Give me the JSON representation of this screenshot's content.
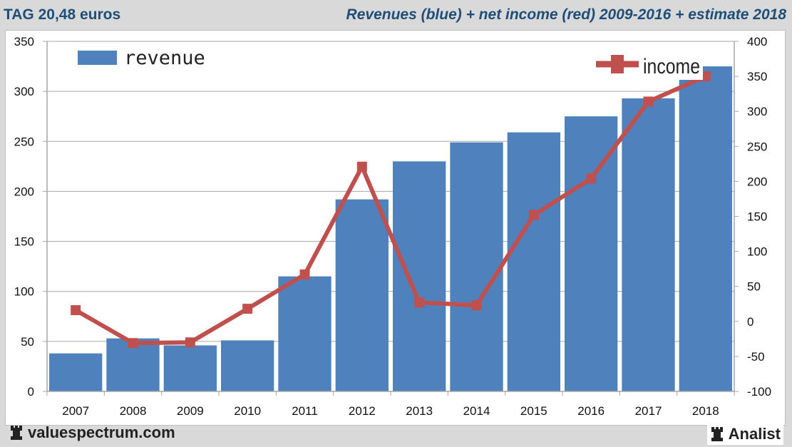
{
  "header": {
    "title": "TAG 20,48 euros",
    "subtitle": "Revenues (blue) + net income (red) 2009-2016 + estimate 2018"
  },
  "footer": {
    "site": "valuespectrum.com",
    "brand": "Analist",
    "site_icon": "rook-icon",
    "brand_icon": "rook-icon"
  },
  "colors": {
    "revenue": "#4f81bd",
    "income": "#c0504d",
    "title": "#1f4e79"
  },
  "chart_data": {
    "type": "bar+line",
    "title": "Revenues (blue) + net income (red) 2009-2016 + estimate 2018",
    "categories": [
      "2007",
      "2008",
      "2009",
      "2010",
      "2011",
      "2012",
      "2013",
      "2014",
      "2015",
      "2016",
      "2017",
      "2018"
    ],
    "series": [
      {
        "name": "revenue",
        "type": "bar",
        "axis": "left",
        "values": [
          38,
          53,
          46,
          51,
          115,
          192,
          230,
          249,
          259,
          275,
          293,
          325
        ]
      },
      {
        "name": "income",
        "type": "line",
        "axis": "right",
        "values": [
          16,
          -31,
          -30,
          18,
          67,
          221,
          27,
          23,
          152,
          204,
          314,
          350
        ]
      }
    ],
    "left_axis": {
      "ylim": [
        0,
        350
      ],
      "ticks": [
        "0",
        "50",
        "100",
        "150",
        "200",
        "250",
        "300",
        "350"
      ]
    },
    "right_axis": {
      "ylim": [
        -100,
        400
      ],
      "ticks": [
        "-100",
        "-50",
        "0",
        "50",
        "100",
        "150",
        "200",
        "250",
        "300",
        "350",
        "400"
      ]
    },
    "legend": [
      {
        "label": "revenue",
        "placement": "top-left"
      },
      {
        "label": "income",
        "placement": "top-right"
      }
    ],
    "grid": true
  }
}
